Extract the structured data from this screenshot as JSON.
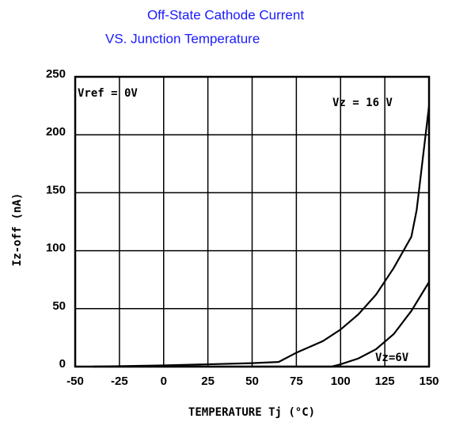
{
  "chart_data": {
    "type": "line",
    "title": "Off-State Cathode Current",
    "subtitle": "VS. Junction Temperature",
    "x_label": "TEMPERATURE Tj (°C)",
    "y_label": "Iz-off (nA)",
    "annotations": [
      "Vref = 0V"
    ],
    "xlim": [
      -50,
      150
    ],
    "xticks": [
      -50,
      -25,
      0,
      25,
      50,
      75,
      100,
      125,
      150
    ],
    "ylim": [
      0,
      250
    ],
    "yticks": [
      0,
      50,
      100,
      150,
      200,
      250
    ],
    "grid": true,
    "series": [
      {
        "name": "Vz = 16 V",
        "color": "#000000",
        "x": [
          -40,
          0,
          25,
          50,
          65,
          75,
          90,
          100,
          110,
          120,
          130,
          140,
          143,
          150
        ],
        "values": [
          0,
          1,
          2,
          3,
          4,
          12,
          22,
          32,
          45,
          62,
          85,
          112,
          135,
          225
        ]
      },
      {
        "name": "Vz=6V",
        "color": "#000000",
        "x": [
          -40,
          95,
          100,
          110,
          120,
          130,
          140,
          150
        ],
        "values": [
          0,
          0,
          2,
          7,
          15,
          28,
          48,
          73
        ]
      }
    ]
  }
}
